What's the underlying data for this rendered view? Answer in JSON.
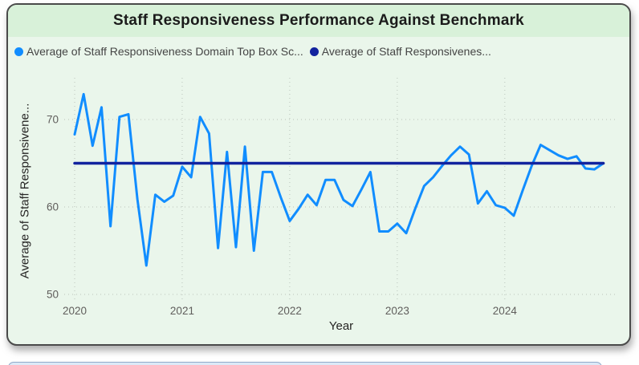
{
  "card": {
    "title": "Staff Responsiveness Performance Against Benchmark"
  },
  "legend": {
    "items": [
      {
        "label": "Average of Staff Responsiveness Domain Top Box Sc...",
        "color": "#118DFF"
      },
      {
        "label": "Average of Staff Responsivenes...",
        "color": "#12239E"
      }
    ]
  },
  "axes": {
    "y_title": "Average of Staff Responsivene...",
    "x_title": "Year"
  },
  "chart_data": {
    "type": "line",
    "title": "Staff Responsiveness Performance Against Benchmark",
    "xlabel": "Year",
    "ylabel": "Average of Staff Responsivene...",
    "x_unit": "month",
    "x_range": [
      "2020-01",
      "2024-12"
    ],
    "x_tick_labels": [
      "2020",
      "2021",
      "2022",
      "2023",
      "2024"
    ],
    "y_ticks": [
      50,
      60,
      70
    ],
    "ylim": [
      49,
      75
    ],
    "grid": "dotted",
    "legend_position": "top",
    "colors": {
      "series": "#118DFF",
      "benchmark": "#12239E"
    },
    "series": [
      {
        "name": "Average of Staff Responsiveness Domain Top Box Sc...",
        "color": "#118DFF",
        "values": [
          68.3,
          72.9,
          67.0,
          71.4,
          57.8,
          70.3,
          70.6,
          60.9,
          53.3,
          61.4,
          60.6,
          61.3,
          64.6,
          63.4,
          70.3,
          68.4,
          55.3,
          66.3,
          55.4,
          66.9,
          55.0,
          64.0,
          64.0,
          61.1,
          58.4,
          59.8,
          61.4,
          60.2,
          63.1,
          63.1,
          60.8,
          60.1,
          62.0,
          64.0,
          57.2,
          57.2,
          58.1,
          57.0,
          59.8,
          62.4,
          63.4,
          64.7,
          65.9,
          66.9,
          66.0,
          60.4,
          61.8,
          60.2,
          59.9,
          59.0,
          61.9,
          64.7,
          67.1,
          66.5,
          65.9,
          65.5,
          65.8,
          64.4,
          64.3,
          65.0
        ]
      },
      {
        "name": "Average of Staff Responsivenes...",
        "color": "#12239E",
        "type": "constant-benchmark",
        "value": 65.0
      }
    ]
  }
}
